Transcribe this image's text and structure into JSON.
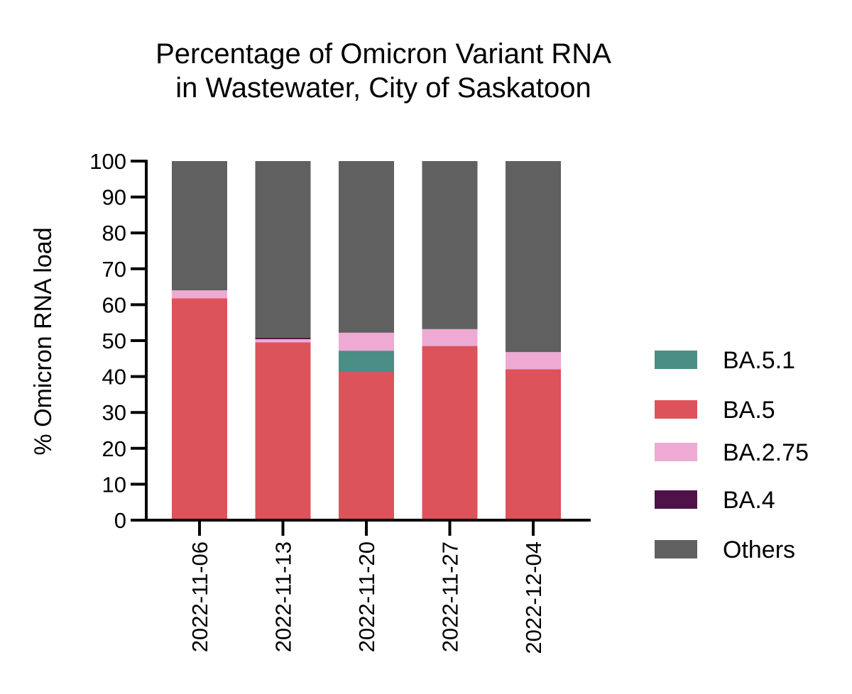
{
  "chart_data": {
    "type": "bar",
    "stacked": true,
    "title_lines": [
      "Percentage of Omicron Variant RNA",
      "in Wastewater, City of Saskatoon"
    ],
    "xlabel": "",
    "ylabel": "% Omicron RNA load",
    "ylim": [
      0,
      100
    ],
    "yticks": [
      "0",
      "10",
      "20",
      "30",
      "40",
      "50",
      "60",
      "70",
      "80",
      "90",
      "100"
    ],
    "categories": [
      "2022-11-06",
      "2022-11-13",
      "2022-11-20",
      "2022-11-27",
      "2022-12-04"
    ],
    "legend_position": "right",
    "series": [
      {
        "name": "BA.5",
        "color": "#dc535b",
        "values": [
          61.8,
          49.5,
          41.3,
          48.5,
          42.0
        ]
      },
      {
        "name": "BA.5.1",
        "color": "#4a8e86",
        "values": [
          0,
          0,
          5.9,
          0,
          0
        ]
      },
      {
        "name": "BA.2.75",
        "color": "#eeaad3",
        "values": [
          2.2,
          0.9,
          5.0,
          4.7,
          4.8
        ]
      },
      {
        "name": "BA.4",
        "color": "#4f1149",
        "values": [
          0,
          0.4,
          0,
          0,
          0
        ]
      },
      {
        "name": "Others",
        "color": "#606060",
        "values": [
          36.0,
          49.2,
          47.8,
          46.8,
          53.2
        ]
      }
    ],
    "legend_order": [
      "BA.5.1",
      "BA.5",
      "BA.2.75",
      "BA.4",
      "Others"
    ]
  }
}
